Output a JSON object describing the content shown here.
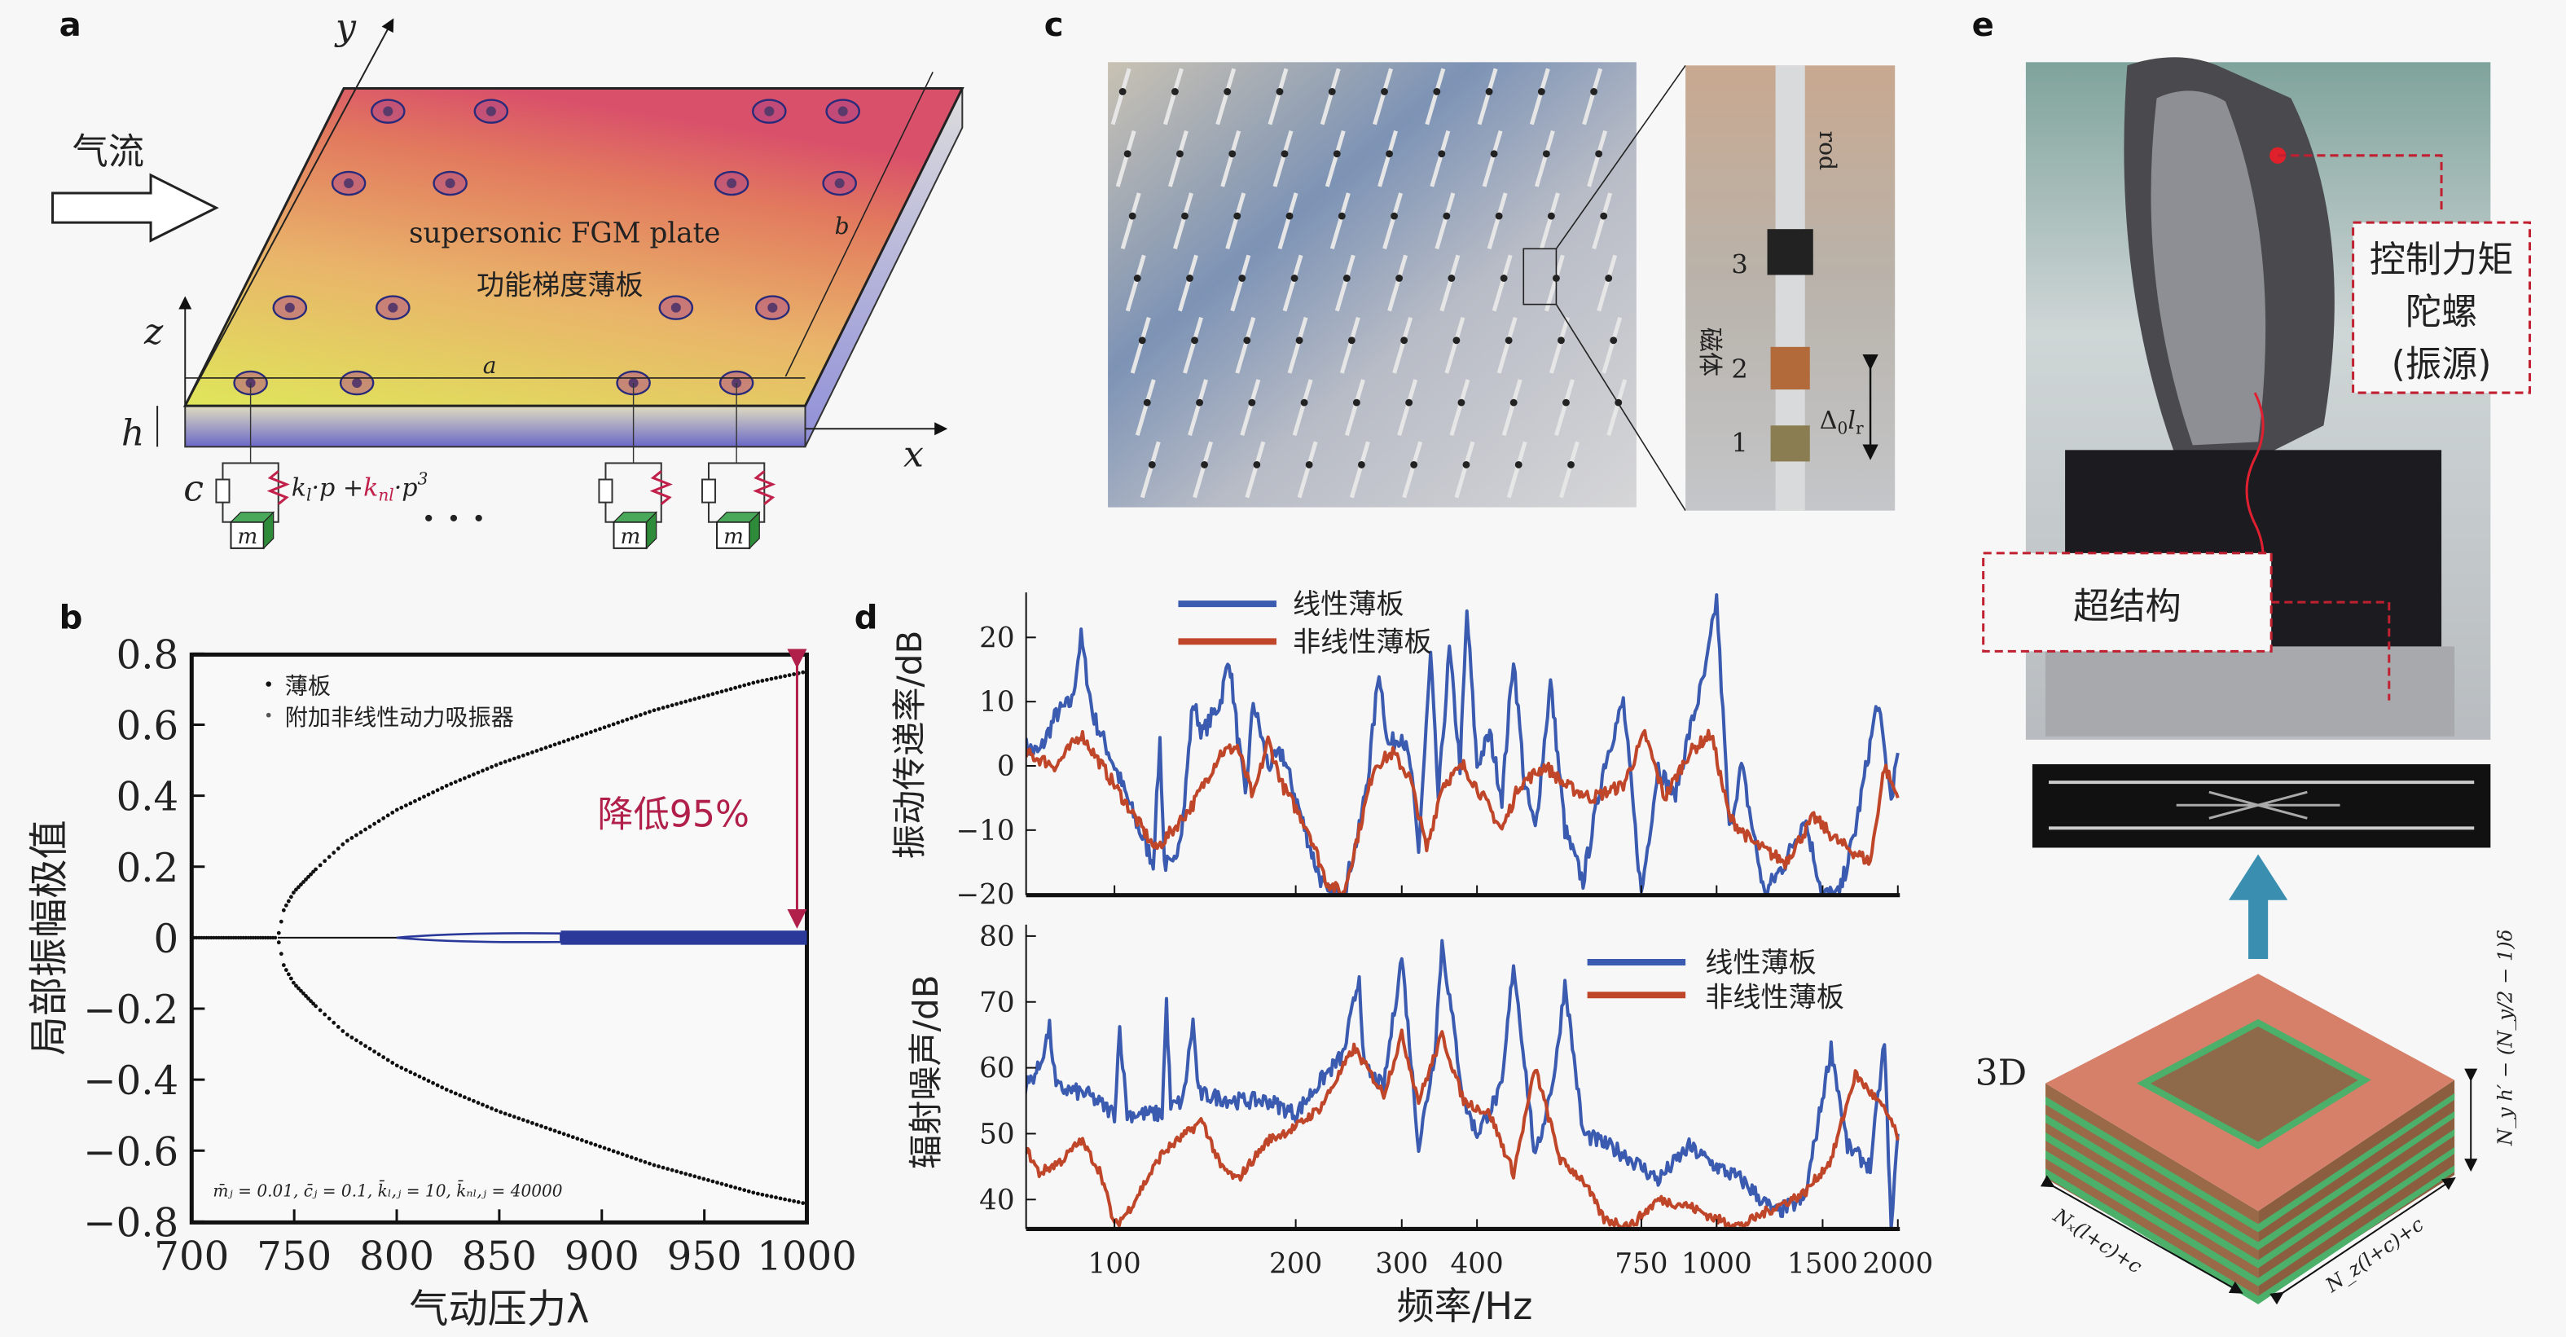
{
  "panels": {
    "a": "a",
    "b": "b",
    "c": "c",
    "d": "d",
    "e": "e"
  },
  "panel_a": {
    "airflow": "气流",
    "plate_en": "supersonic FGM plate",
    "plate_cn": "功能梯度薄板",
    "axis_x": "x",
    "axis_y": "y",
    "axis_z": "z",
    "dim_h": "h",
    "dim_a": "a",
    "dim_b": "b",
    "damper": "c",
    "spring_k1": "k",
    "spring_k1_sub": "l",
    "spring_p": "·p +",
    "spring_knl": "k",
    "spring_knl_sub": "nl",
    "spring_p3": "·p",
    "spring_exp": "3",
    "mass": "m",
    "ellipsis": "· · ·"
  },
  "panel_c": {
    "rod": "rod",
    "magnet": "磁体",
    "n3": "3",
    "n2": "2",
    "n1": "1",
    "delta": "Δ",
    "delta_sub": "0",
    "lr": "l",
    "lr_sub": "r"
  },
  "panel_e": {
    "gyro_line1": "控制力矩",
    "gyro_line2": "陀螺",
    "gyro_line3": "(振源)",
    "metastructure": "超结构",
    "label_3d": "3D",
    "dim_x": "Nₓ(l+c)+c",
    "dim_z": "N_z(l+c)+c",
    "dim_y": "N_y h′ − (N_y/2 − 1)δ"
  },
  "colors": {
    "linear": "#3b5bb0",
    "nonlinear": "#c0462a",
    "absorber": "#2b3a9a",
    "annotation": "#b0204a"
  },
  "chart_data": [
    {
      "id": "b",
      "type": "scatter",
      "xlabel": "气动压力λ",
      "ylabel": "局部振幅极值",
      "xlim": [
        700,
        1000
      ],
      "ylim": [
        -0.8,
        0.8
      ],
      "xticks": [
        "700",
        "750",
        "800",
        "850",
        "900",
        "950",
        "1000"
      ],
      "yticks": [
        "0.8",
        "0.6",
        "0.4",
        "0.2",
        "0",
        "−0.2",
        "−0.4",
        "−0.6",
        "−0.8"
      ],
      "legend": [
        "薄板",
        "附加非线性动力吸振器"
      ],
      "annotation": "降低95%",
      "params": "m̄ⱼ = 0.01, c̄ⱼ = 0.1, k̄ₗ,ⱼ = 10, k̄ₙₗ,ⱼ = 40000",
      "series": [
        {
          "name": "薄板",
          "bifurcation_lambda": 742,
          "branch": [
            [
              742,
              0
            ],
            [
              745,
              0.08
            ],
            [
              750,
              0.13
            ],
            [
              760,
              0.19
            ],
            [
              775,
              0.27
            ],
            [
              800,
              0.36
            ],
            [
              825,
              0.43
            ],
            [
              850,
              0.49
            ],
            [
              875,
              0.54
            ],
            [
              900,
              0.59
            ],
            [
              925,
              0.64
            ],
            [
              950,
              0.68
            ],
            [
              975,
              0.72
            ],
            [
              1000,
              0.75
            ]
          ]
        },
        {
          "name": "附加非线性动力吸振器",
          "band": [
            [
              700,
              0
            ],
            [
              800,
              0
            ],
            [
              810,
              0.012
            ],
            [
              850,
              0.015
            ],
            [
              880,
              0.02
            ],
            [
              950,
              0.02
            ],
            [
              1000,
              0.02
            ]
          ]
        }
      ]
    },
    {
      "id": "d-top",
      "type": "line",
      "xscale": "log",
      "xlabel": "频率/Hz",
      "ylabel": "振动传递率/dB",
      "xlim": [
        71,
        2000
      ],
      "ylim": [
        -20,
        25
      ],
      "xticks": [
        "100",
        "200",
        "300",
        "400",
        "750",
        "1000",
        "1500",
        "2000"
      ],
      "yticks": [
        "20",
        "10",
        "0",
        "−10",
        "−20"
      ],
      "legend": [
        "线性薄板",
        "非线性薄板"
      ],
      "series": [
        {
          "name": "线性薄板",
          "points": [
            [
              71,
              3
            ],
            [
              75,
              2
            ],
            [
              80,
              8
            ],
            [
              85,
              10
            ],
            [
              88,
              20
            ],
            [
              92,
              8
            ],
            [
              100,
              0
            ],
            [
              110,
              -10
            ],
            [
              116,
              -15
            ],
            [
              119,
              4
            ],
            [
              121,
              -15
            ],
            [
              125,
              -16
            ],
            [
              130,
              -8
            ],
            [
              135,
              10
            ],
            [
              140,
              5
            ],
            [
              150,
              10
            ],
            [
              155,
              17
            ],
            [
              160,
              5
            ],
            [
              165,
              -5
            ],
            [
              170,
              10
            ],
            [
              180,
              0
            ],
            [
              190,
              2
            ],
            [
              200,
              -5
            ],
            [
              215,
              -15
            ],
            [
              225,
              -20
            ],
            [
              240,
              -20
            ],
            [
              255,
              -10
            ],
            [
              265,
              0
            ],
            [
              275,
              15
            ],
            [
              285,
              3
            ],
            [
              300,
              5
            ],
            [
              310,
              0
            ],
            [
              320,
              -13
            ],
            [
              335,
              17
            ],
            [
              345,
              -5
            ],
            [
              360,
              18
            ],
            [
              375,
              0
            ],
            [
              385,
              24
            ],
            [
              400,
              0
            ],
            [
              420,
              5
            ],
            [
              440,
              -5
            ],
            [
              460,
              17
            ],
            [
              480,
              -3
            ],
            [
              500,
              -10
            ],
            [
              530,
              13
            ],
            [
              560,
              -10
            ],
            [
              600,
              -18
            ],
            [
              650,
              0
            ],
            [
              700,
              10
            ],
            [
              750,
              -20
            ],
            [
              800,
              0
            ],
            [
              850,
              -5
            ],
            [
              900,
              5
            ],
            [
              960,
              15
            ],
            [
              1000,
              26
            ],
            [
              1050,
              -10
            ],
            [
              1100,
              0
            ],
            [
              1200,
              -20
            ],
            [
              1300,
              -15
            ],
            [
              1400,
              -8
            ],
            [
              1500,
              -20
            ],
            [
              1600,
              -20
            ],
            [
              1700,
              -10
            ],
            [
              1850,
              10
            ],
            [
              1950,
              -5
            ],
            [
              2000,
              2
            ]
          ]
        },
        {
          "name": "非线性薄板",
          "points": [
            [
              71,
              2
            ],
            [
              80,
              0
            ],
            [
              88,
              5
            ],
            [
              100,
              -3
            ],
            [
              117,
              -13
            ],
            [
              125,
              -10
            ],
            [
              135,
              -6
            ],
            [
              150,
              2
            ],
            [
              160,
              3
            ],
            [
              170,
              -5
            ],
            [
              180,
              4
            ],
            [
              190,
              -3
            ],
            [
              210,
              -10
            ],
            [
              225,
              -18
            ],
            [
              240,
              -20
            ],
            [
              255,
              -10
            ],
            [
              270,
              0
            ],
            [
              290,
              2
            ],
            [
              310,
              -2
            ],
            [
              330,
              -13
            ],
            [
              350,
              -3
            ],
            [
              380,
              0
            ],
            [
              410,
              -5
            ],
            [
              440,
              -10
            ],
            [
              470,
              -3
            ],
            [
              520,
              0
            ],
            [
              560,
              -3
            ],
            [
              620,
              -5
            ],
            [
              700,
              -3
            ],
            [
              760,
              5
            ],
            [
              820,
              -5
            ],
            [
              900,
              2
            ],
            [
              980,
              5
            ],
            [
              1050,
              -8
            ],
            [
              1150,
              -12
            ],
            [
              1300,
              -15
            ],
            [
              1450,
              -8
            ],
            [
              1600,
              -12
            ],
            [
              1800,
              -15
            ],
            [
              1900,
              0
            ],
            [
              2000,
              -5
            ]
          ]
        }
      ]
    },
    {
      "id": "d-bottom",
      "type": "line",
      "xscale": "log",
      "xlabel": "频率/Hz",
      "ylabel": "辐射噪声/dB",
      "xlim": [
        71,
        2000
      ],
      "ylim": [
        35,
        80
      ],
      "xticks": [
        "100",
        "200",
        "300",
        "400",
        "750",
        "1000",
        "1500",
        "2000"
      ],
      "yticks": [
        "80",
        "70",
        "60",
        "50",
        "40"
      ],
      "legend": [
        "线性薄板",
        "非线性薄板"
      ],
      "series": [
        {
          "name": "线性薄板",
          "points": [
            [
              71,
              57
            ],
            [
              75,
              60
            ],
            [
              78,
              66
            ],
            [
              80,
              57
            ],
            [
              90,
              56
            ],
            [
              100,
              53
            ],
            [
              102,
              66
            ],
            [
              105,
              53
            ],
            [
              120,
              53
            ],
            [
              122,
              70
            ],
            [
              124,
              54
            ],
            [
              130,
              55
            ],
            [
              135,
              67
            ],
            [
              138,
              56
            ],
            [
              160,
              55
            ],
            [
              180,
              55
            ],
            [
              200,
              53
            ],
            [
              220,
              58
            ],
            [
              240,
              62
            ],
            [
              255,
              74
            ],
            [
              260,
              60
            ],
            [
              280,
              57
            ],
            [
              300,
              77
            ],
            [
              320,
              48
            ],
            [
              340,
              62
            ],
            [
              350,
              79
            ],
            [
              380,
              55
            ],
            [
              400,
              50
            ],
            [
              440,
              57
            ],
            [
              460,
              76
            ],
            [
              500,
              46
            ],
            [
              540,
              60
            ],
            [
              560,
              73
            ],
            [
              600,
              50
            ],
            [
              700,
              47
            ],
            [
              800,
              43
            ],
            [
              900,
              48
            ],
            [
              1000,
              45
            ],
            [
              1100,
              43
            ],
            [
              1250,
              38
            ],
            [
              1400,
              40
            ],
            [
              1550,
              63
            ],
            [
              1650,
              48
            ],
            [
              1800,
              45
            ],
            [
              1900,
              64
            ],
            [
              1950,
              35
            ],
            [
              2000,
              50
            ]
          ]
        },
        {
          "name": "非线性薄板",
          "points": [
            [
              71,
              48
            ],
            [
              75,
              44
            ],
            [
              82,
              46
            ],
            [
              88,
              49
            ],
            [
              95,
              44
            ],
            [
              100,
              36
            ],
            [
              105,
              38
            ],
            [
              120,
              47
            ],
            [
              140,
              52
            ],
            [
              150,
              45
            ],
            [
              160,
              43
            ],
            [
              180,
              49
            ],
            [
              200,
              51
            ],
            [
              220,
              54
            ],
            [
              250,
              63
            ],
            [
              280,
              56
            ],
            [
              300,
              65
            ],
            [
              320,
              55
            ],
            [
              350,
              65
            ],
            [
              380,
              55
            ],
            [
              420,
              53
            ],
            [
              460,
              44
            ],
            [
              500,
              60
            ],
            [
              550,
              46
            ],
            [
              600,
              43
            ],
            [
              650,
              37
            ],
            [
              720,
              36
            ],
            [
              800,
              40
            ],
            [
              900,
              39
            ],
            [
              1000,
              37
            ],
            [
              1100,
              36
            ],
            [
              1200,
              38
            ],
            [
              1400,
              41
            ],
            [
              1550,
              46
            ],
            [
              1700,
              59
            ],
            [
              1850,
              55
            ],
            [
              1950,
              52
            ],
            [
              2000,
              49
            ]
          ]
        }
      ]
    }
  ]
}
